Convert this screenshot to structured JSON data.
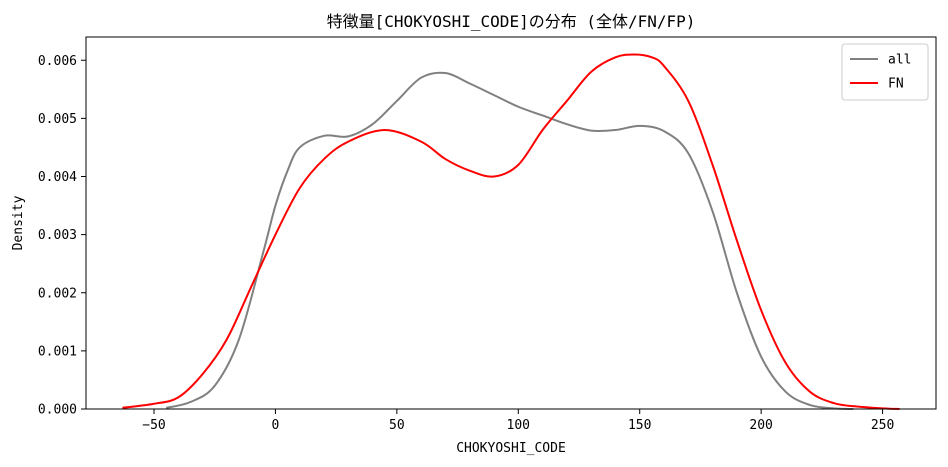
{
  "chart_data": {
    "type": "line",
    "title": "特徴量[CHOKYOSHI_CODE]の分布 (全体/FN/FP)",
    "xlabel": "CHOKYOSHI_CODE",
    "ylabel": "Density",
    "xlim": [
      -78,
      272
    ],
    "ylim": [
      0,
      0.0064
    ],
    "xticks": [
      -50,
      0,
      50,
      100,
      150,
      200,
      250
    ],
    "xtick_labels": [
      "−50",
      "0",
      "50",
      "100",
      "150",
      "200",
      "250"
    ],
    "yticks": [
      0,
      0.001,
      0.002,
      0.003,
      0.004,
      0.005,
      0.006
    ],
    "ytick_labels": [
      "0.000",
      "0.001",
      "0.002",
      "0.003",
      "0.004",
      "0.005",
      "0.006"
    ],
    "grid": false,
    "legend": {
      "position": "top-right"
    },
    "series": [
      {
        "name": "all",
        "color": "#808080",
        "x": [
          -45,
          -35,
          -25,
          -15,
          -5,
          0,
          5,
          10,
          20,
          30,
          40,
          50,
          60,
          70,
          80,
          90,
          100,
          110,
          120,
          130,
          140,
          150,
          160,
          170,
          180,
          190,
          200,
          210,
          220,
          230,
          238
        ],
        "y": [
          2e-05,
          0.00012,
          0.0004,
          0.0012,
          0.0027,
          0.0035,
          0.0041,
          0.0045,
          0.0047,
          0.00469,
          0.0049,
          0.0053,
          0.0057,
          0.00578,
          0.0056,
          0.0054,
          0.0052,
          0.00505,
          0.0049,
          0.00479,
          0.0048,
          0.00487,
          0.00478,
          0.0044,
          0.0034,
          0.002,
          0.0009,
          0.0003,
          7e-05,
          1e-05,
          0.0
        ]
      },
      {
        "name": "FN",
        "color": "#ff0000",
        "x": [
          -63,
          -50,
          -40,
          -30,
          -20,
          -10,
          0,
          10,
          20,
          30,
          45,
          60,
          70,
          80,
          90,
          100,
          110,
          120,
          130,
          140,
          148,
          155,
          160,
          170,
          180,
          190,
          200,
          210,
          220,
          230,
          240,
          250,
          257
        ],
        "y": [
          2e-05,
          9e-05,
          0.0002,
          0.0006,
          0.0012,
          0.0021,
          0.003,
          0.0038,
          0.0043,
          0.0046,
          0.0048,
          0.0046,
          0.0043,
          0.0041,
          0.004,
          0.0042,
          0.0048,
          0.0053,
          0.0058,
          0.00605,
          0.0061,
          0.00605,
          0.0059,
          0.0053,
          0.0042,
          0.0029,
          0.0017,
          0.0008,
          0.0003,
          0.0001,
          4e-05,
          1e-05,
          0.0
        ]
      }
    ]
  }
}
